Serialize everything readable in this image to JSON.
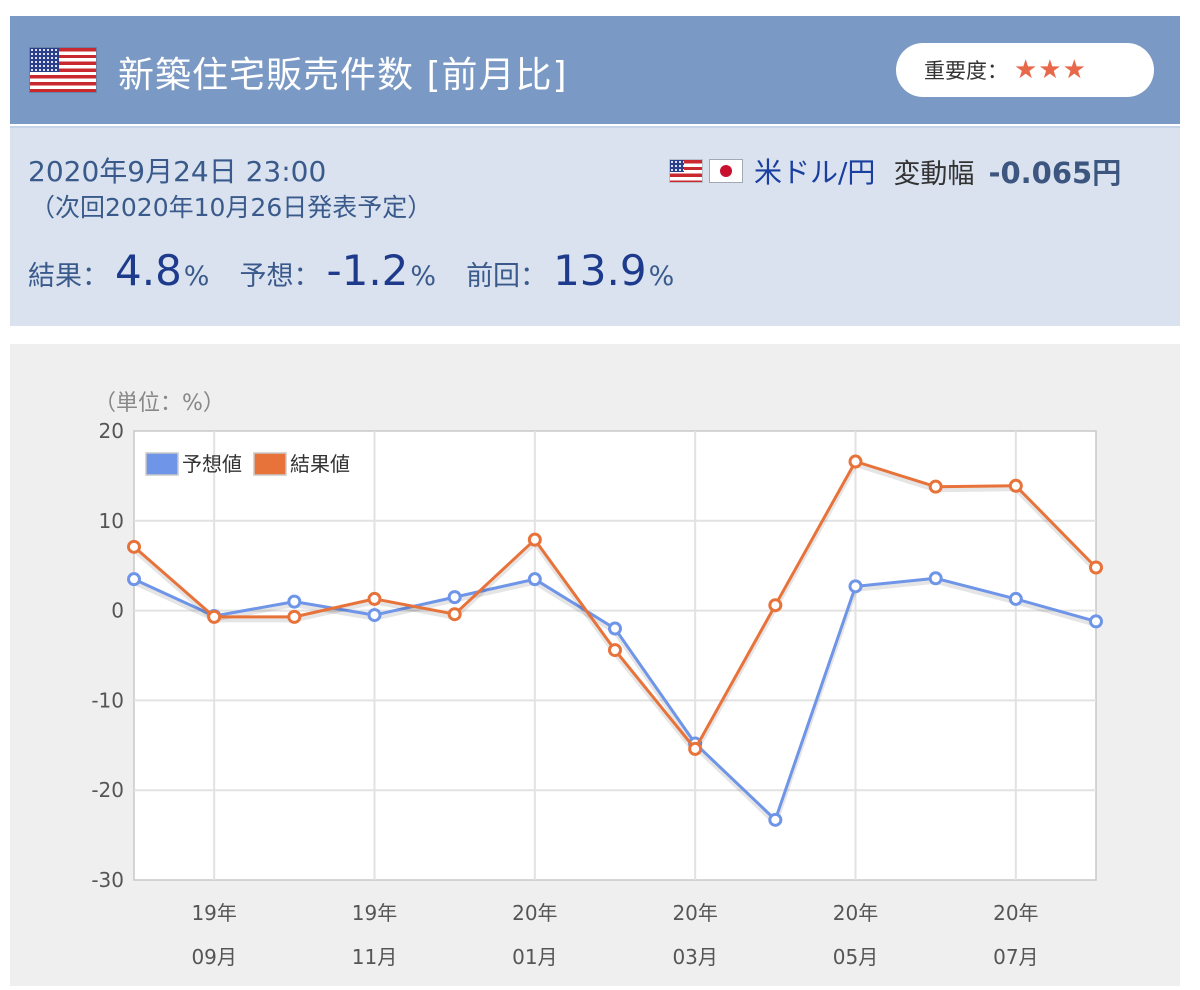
{
  "header": {
    "title": "新築住宅販売件数 [前月比]",
    "importance_label": "重要度：",
    "importance_stars": "★★★"
  },
  "info": {
    "date": "2020年9月24日 23:00",
    "next": "（次回2020年10月26日発表予定）",
    "pair": "米ドル/円",
    "range_label": "変動幅",
    "range_value": "-0.065円",
    "result_label": "結果：",
    "result_value": "4.8",
    "forecast_label": "予想：",
    "forecast_value": "-1.2",
    "previous_label": "前回：",
    "previous_value": "13.9",
    "percent": "%"
  },
  "colors": {
    "header_bg": "#7a99c4",
    "info_bg": "#d9e2ee",
    "forecast": "#6f95e8",
    "result": "#e8733a"
  },
  "chart_data": {
    "type": "line",
    "unit_label": "（単位：%）",
    "x": [
      "2019-08",
      "2019-09",
      "2019-10",
      "2019-11",
      "2019-12",
      "2020-01",
      "2020-02",
      "2020-03",
      "2020-04",
      "2020-05",
      "2020-06",
      "2020-07",
      "2020-08"
    ],
    "tick_labels": [
      {
        "year": "19年",
        "month": "09月"
      },
      {
        "year": "19年",
        "month": "11月"
      },
      {
        "year": "20年",
        "month": "01月"
      },
      {
        "year": "20年",
        "month": "03月"
      },
      {
        "year": "20年",
        "month": "05月"
      },
      {
        "year": "20年",
        "month": "07月"
      }
    ],
    "series": [
      {
        "name": "予想値",
        "values": [
          3.5,
          -0.6,
          1.0,
          -0.5,
          1.5,
          3.5,
          -2.0,
          -14.8,
          -23.3,
          2.7,
          3.6,
          1.3,
          -1.2
        ]
      },
      {
        "name": "結果値",
        "values": [
          7.1,
          -0.7,
          -0.7,
          1.3,
          -0.4,
          7.9,
          -4.4,
          -15.4,
          0.6,
          16.6,
          13.8,
          13.9,
          4.8
        ]
      }
    ],
    "ylim": [
      -30,
      20
    ],
    "yticks": [
      20,
      10,
      0,
      -10,
      -20,
      -30
    ],
    "grid": true,
    "legend": "top-left"
  }
}
